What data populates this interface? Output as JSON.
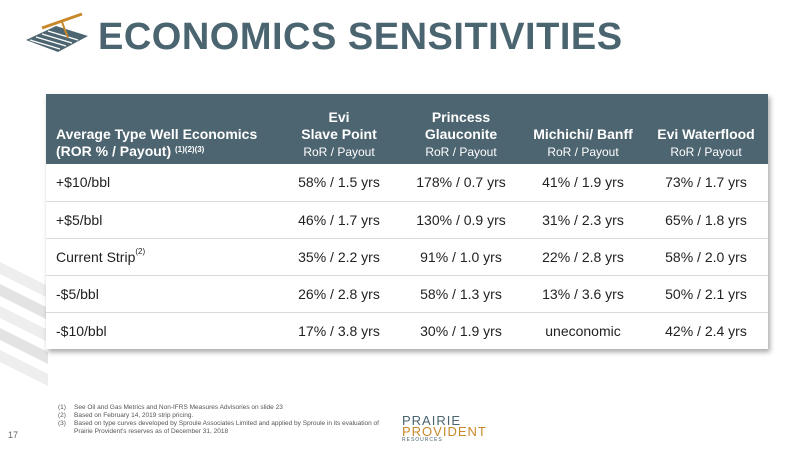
{
  "title": "ECONOMICS SENSITIVITIES",
  "table": {
    "header": {
      "col0_line1": "Average Type Well Economics",
      "col0_line2": "(ROR % / Payout)",
      "col0_sup": "(1)(2)(3)",
      "columns": [
        {
          "line1": "Evi",
          "line2": "Slave Point",
          "sub": "RoR / Payout"
        },
        {
          "line1": "Princess",
          "line2": "Glauconite",
          "sub": "RoR / Payout"
        },
        {
          "line1": "",
          "line2": "Michichi/ Banff",
          "sub": "RoR / Payout"
        },
        {
          "line1": "",
          "line2": "Evi Waterflood",
          "sub": "RoR / Payout"
        }
      ]
    },
    "rows": [
      {
        "label": "+$10/bbl",
        "sup": "",
        "values": [
          "58% / 1.5 yrs",
          "178% / 0.7 yrs",
          "41% / 1.9 yrs",
          "73% / 1.7 yrs"
        ]
      },
      {
        "label": "+$5/bbl",
        "sup": "",
        "values": [
          "46% / 1.7 yrs",
          "130% / 0.9 yrs",
          "31% / 2.3 yrs",
          "65% / 1.8 yrs"
        ]
      },
      {
        "label": "Current Strip",
        "sup": "(2)",
        "values": [
          "35% / 2.2 yrs",
          "91% / 1.0 yrs",
          "22% / 2.8 yrs",
          "58% / 2.0 yrs"
        ]
      },
      {
        "label": "-$5/bbl",
        "sup": "",
        "values": [
          "26% / 2.8 yrs",
          "58% / 1.3 yrs",
          "13% / 3.6 yrs",
          "50% / 2.1 yrs"
        ]
      },
      {
        "label": "-$10/bbl",
        "sup": "",
        "values": [
          "17% / 3.8 yrs",
          "30% / 1.9 yrs",
          "uneconomic",
          "42% / 2.4 yrs"
        ]
      }
    ]
  },
  "footnotes": [
    {
      "num": "(1)",
      "text": "See Oil and Gas Metrics and Non-IFRS Measures Advisories on slide 23"
    },
    {
      "num": "(2)",
      "text": "Based on February 14, 2019 strip pricing."
    },
    {
      "num": "(3)",
      "text": "Based on type curves developed by Sproule Associates Limited and applied by Sproule in its evaluation of Prairie Provident's reserves as of December 31, 2018"
    }
  ],
  "page_number": "17",
  "brand": {
    "line1": "PRAIRIE",
    "line2": "PROVIDENT",
    "line3": "RESOURCES"
  },
  "colors": {
    "header_bg": "#4d6570",
    "title": "#4a6470",
    "accent": "#c9892b"
  }
}
